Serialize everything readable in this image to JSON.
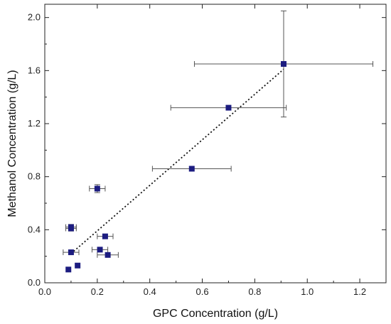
{
  "chart_data": {
    "type": "scatter",
    "xlabel": "GPC Concentration (g/L)",
    "ylabel": "Methanol Concentration (g/L)",
    "xlim": [
      0.0,
      1.3
    ],
    "ylim": [
      0.0,
      2.1
    ],
    "x_ticks": [
      "0.0",
      "0.2",
      "0.4",
      "0.6",
      "0.8",
      "1.0",
      "1.2"
    ],
    "y_ticks": [
      "0.0",
      "0.4",
      "0.8",
      "1.2",
      "1.6",
      "2.0"
    ],
    "x_tick_values": [
      0.0,
      0.2,
      0.4,
      0.6,
      0.8,
      1.0,
      1.2
    ],
    "y_tick_values": [
      0.0,
      0.4,
      0.8,
      1.2,
      1.6,
      2.0
    ],
    "grid": false,
    "marker_color": "#1c1c80",
    "errorbar_color": "#555555",
    "points": [
      {
        "x": 0.09,
        "y": 0.1,
        "xerr": 0,
        "yerr": 0
      },
      {
        "x": 0.125,
        "y": 0.13,
        "xerr": 0,
        "yerr": 0
      },
      {
        "x": 0.1,
        "y": 0.23,
        "xerr": 0.03,
        "yerr": 0
      },
      {
        "x": 0.1,
        "y": 0.42,
        "xerr": 0.02,
        "yerr": 0.02
      },
      {
        "x": 0.1,
        "y": 0.41,
        "xerr": 0.02,
        "yerr": 0.02
      },
      {
        "x": 0.2,
        "y": 0.71,
        "xerr": 0.03,
        "yerr": 0.03
      },
      {
        "x": 0.21,
        "y": 0.25,
        "xerr": 0.03,
        "yerr": 0
      },
      {
        "x": 0.23,
        "y": 0.35,
        "xerr": 0.03,
        "yerr": 0
      },
      {
        "x": 0.24,
        "y": 0.21,
        "xerr": 0.04,
        "yerr": 0
      },
      {
        "x": 0.56,
        "y": 0.86,
        "xerr": 0.15,
        "yerr": 0
      },
      {
        "x": 0.7,
        "y": 1.32,
        "xerr": 0.22,
        "yerr": 0
      },
      {
        "x": 0.91,
        "y": 1.65,
        "xerr": 0.34,
        "yerr": 0.4
      }
    ],
    "trendline": {
      "style": "dotted",
      "x": [
        0.1,
        0.91
      ],
      "y": [
        0.22,
        1.61
      ]
    }
  }
}
